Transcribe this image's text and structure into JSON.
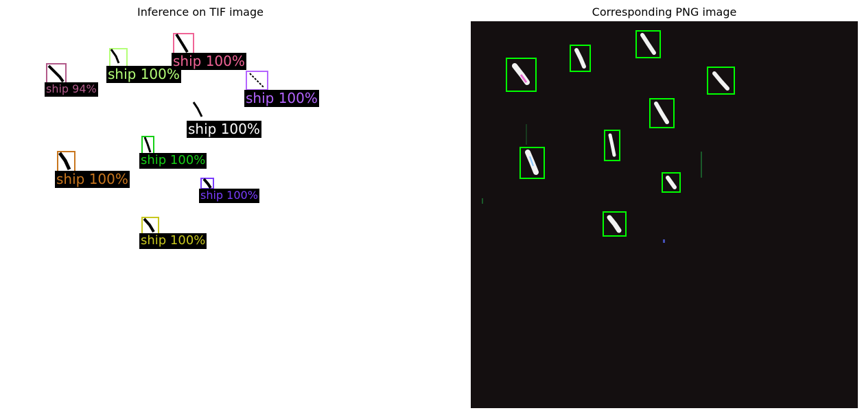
{
  "titles": {
    "left": "Inference on TIF image",
    "right": "Corresponding PNG image"
  },
  "left_detections": [
    {
      "label": "ship 94%",
      "color": "#b25a8a"
    },
    {
      "label": "ship 100%",
      "color": "#b4ff78"
    },
    {
      "label": "ship 100%",
      "color": "#f06496"
    },
    {
      "label": "ship 100%",
      "color": "#b464ff"
    },
    {
      "label": "ship 100%",
      "color": "#ffffff"
    },
    {
      "label": "ship 100%",
      "color": "#16d016"
    },
    {
      "label": "ship 100%",
      "color": "#c8761e"
    },
    {
      "label": "ship 100%",
      "color": "#7a3cff"
    },
    {
      "label": "ship 100%",
      "color": "#c8c81e"
    }
  ],
  "right_detections": {
    "box_color": "#00ff00",
    "count": 9
  }
}
